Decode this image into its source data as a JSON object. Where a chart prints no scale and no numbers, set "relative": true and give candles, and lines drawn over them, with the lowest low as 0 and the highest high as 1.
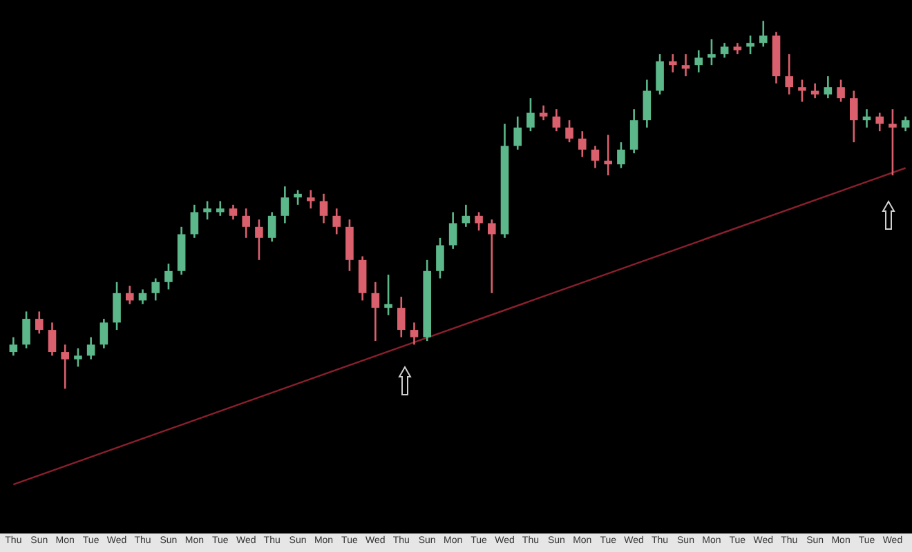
{
  "chart_data": {
    "type": "candlestick",
    "relative": true,
    "categories": [
      "Thu",
      null,
      "Sun",
      null,
      "Mon",
      null,
      "Tue",
      null,
      "Wed",
      null,
      "Thu",
      null,
      "Sun",
      null,
      "Mon",
      null,
      "Tue",
      null,
      "Wed",
      null,
      "Thu",
      null,
      "Sun",
      null,
      "Mon",
      null,
      "Tue",
      null,
      "Wed",
      null,
      "Thu",
      null,
      "Sun",
      null,
      "Mon",
      null,
      "Tue",
      null,
      "Wed",
      null,
      "Thu",
      null,
      "Sun",
      null,
      "Mon",
      null,
      "Tue",
      null,
      "Wed",
      null,
      "Thu",
      null,
      "Sun",
      null,
      "Mon",
      null,
      "Tue",
      null,
      "Wed",
      null,
      "Thu",
      null,
      "Sun",
      null,
      "Mon",
      null,
      "Tue",
      null,
      "Wed",
      null
    ],
    "ohlc": [
      [
        0.1,
        0.14,
        0.09,
        0.12
      ],
      [
        0.12,
        0.21,
        0.11,
        0.19
      ],
      [
        0.19,
        0.21,
        0.15,
        0.16
      ],
      [
        0.16,
        0.18,
        0.09,
        0.1
      ],
      [
        0.1,
        0.12,
        0,
        0.08
      ],
      [
        0.08,
        0.11,
        0.06,
        0.09
      ],
      [
        0.09,
        0.14,
        0.08,
        0.12
      ],
      [
        0.12,
        0.19,
        0.11,
        0.18
      ],
      [
        0.18,
        0.29,
        0.16,
        0.26
      ],
      [
        0.26,
        0.28,
        0.23,
        0.24
      ],
      [
        0.24,
        0.27,
        0.23,
        0.26
      ],
      [
        0.26,
        0.3,
        0.24,
        0.29
      ],
      [
        0.29,
        0.34,
        0.27,
        0.32
      ],
      [
        0.32,
        0.44,
        0.31,
        0.42
      ],
      [
        0.42,
        0.5,
        0.41,
        0.48
      ],
      [
        0.48,
        0.51,
        0.46,
        0.49
      ],
      [
        0.48,
        0.51,
        0.47,
        0.49
      ],
      [
        0.49,
        0.5,
        0.46,
        0.47
      ],
      [
        0.47,
        0.49,
        0.41,
        0.44
      ],
      [
        0.44,
        0.46,
        0.35,
        0.41
      ],
      [
        0.41,
        0.48,
        0.4,
        0.47
      ],
      [
        0.47,
        0.55,
        0.45,
        0.52
      ],
      [
        0.52,
        0.54,
        0.5,
        0.53
      ],
      [
        0.52,
        0.54,
        0.49,
        0.51
      ],
      [
        0.51,
        0.53,
        0.45,
        0.47
      ],
      [
        0.47,
        0.49,
        0.42,
        0.44
      ],
      [
        0.44,
        0.46,
        0.32,
        0.35
      ],
      [
        0.35,
        0.36,
        0.24,
        0.26
      ],
      [
        0.26,
        0.29,
        0.13,
        0.22
      ],
      [
        0.22,
        0.31,
        0.2,
        0.23
      ],
      [
        0.22,
        0.25,
        0.14,
        0.16
      ],
      [
        0.16,
        0.18,
        0.12,
        0.14
      ],
      [
        0.14,
        0.35,
        0.13,
        0.32
      ],
      [
        0.32,
        0.41,
        0.3,
        0.39
      ],
      [
        0.39,
        0.48,
        0.38,
        0.45
      ],
      [
        0.45,
        0.5,
        0.44,
        0.47
      ],
      [
        0.47,
        0.48,
        0.43,
        0.45
      ],
      [
        0.45,
        0.46,
        0.26,
        0.42
      ],
      [
        0.42,
        0.72,
        0.41,
        0.66
      ],
      [
        0.66,
        0.74,
        0.65,
        0.71
      ],
      [
        0.71,
        0.79,
        0.7,
        0.75
      ],
      [
        0.75,
        0.77,
        0.73,
        0.74
      ],
      [
        0.74,
        0.76,
        0.7,
        0.71
      ],
      [
        0.71,
        0.73,
        0.67,
        0.68
      ],
      [
        0.68,
        0.7,
        0.63,
        0.65
      ],
      [
        0.65,
        0.66,
        0.6,
        0.62
      ],
      [
        0.62,
        0.69,
        0.58,
        0.61
      ],
      [
        0.61,
        0.67,
        0.6,
        0.65
      ],
      [
        0.65,
        0.76,
        0.64,
        0.73
      ],
      [
        0.73,
        0.84,
        0.71,
        0.81
      ],
      [
        0.81,
        0.91,
        0.8,
        0.89
      ],
      [
        0.89,
        0.91,
        0.86,
        0.88
      ],
      [
        0.88,
        0.91,
        0.85,
        0.87
      ],
      [
        0.88,
        0.92,
        0.86,
        0.9
      ],
      [
        0.9,
        0.95,
        0.88,
        0.91
      ],
      [
        0.91,
        0.94,
        0.9,
        0.93
      ],
      [
        0.93,
        0.94,
        0.91,
        0.92
      ],
      [
        0.93,
        0.96,
        0.91,
        0.94
      ],
      [
        0.94,
        1,
        0.93,
        0.96
      ],
      [
        0.96,
        0.97,
        0.83,
        0.85
      ],
      [
        0.85,
        0.91,
        0.8,
        0.82
      ],
      [
        0.82,
        0.84,
        0.78,
        0.81
      ],
      [
        0.81,
        0.83,
        0.79,
        0.8
      ],
      [
        0.8,
        0.85,
        0.79,
        0.82
      ],
      [
        0.82,
        0.84,
        0.78,
        0.79
      ],
      [
        0.79,
        0.81,
        0.67,
        0.73
      ],
      [
        0.73,
        0.76,
        0.71,
        0.74
      ],
      [
        0.74,
        0.75,
        0.7,
        0.72
      ],
      [
        0.72,
        0.76,
        0.58,
        0.71
      ],
      [
        0.71,
        0.74,
        0.7,
        0.73
      ]
    ],
    "colors": [
      "#5cb88a",
      "#5cb88a",
      "#d9606c",
      "#d9606c",
      "#d9606c",
      "#5cb88a",
      "#5cb88a",
      "#5cb88a",
      "#5cb88a",
      "#d9606c",
      "#5cb88a",
      "#5cb88a",
      "#5cb88a",
      "#5cb88a",
      "#5cb88a",
      "#5cb88a",
      "#5cb88a",
      "#d9606c",
      "#d9606c",
      "#d9606c",
      "#5cb88a",
      "#5cb88a",
      "#5cb88a",
      "#d9606c",
      "#d9606c",
      "#d9606c",
      "#d9606c",
      "#d9606c",
      "#d9606c",
      "#5cb88a",
      "#d9606c",
      "#d9606c",
      "#5cb88a",
      "#5cb88a",
      "#5cb88a",
      "#5cb88a",
      "#d9606c",
      "#d9606c",
      "#5cb88a",
      "#5cb88a",
      "#5cb88a",
      "#d9606c",
      "#d9606c",
      "#d9606c",
      "#d9606c",
      "#d9606c",
      "#d9606c",
      "#5cb88a",
      "#5cb88a",
      "#5cb88a",
      "#5cb88a",
      "#d9606c",
      "#d9606c",
      "#5cb88a",
      "#5cb88a",
      "#5cb88a",
      "#d9606c",
      "#5cb88a",
      "#5cb88a",
      "#d9606c",
      "#d9606c",
      "#d9606c",
      "#d9606c",
      "#5cb88a",
      "#d9606c",
      "#d9606c",
      "#5cb88a",
      "#d9606c",
      "#d9606c",
      "#5cb88a"
    ],
    "series": [
      {
        "type": "line",
        "color": "#8b1f2e",
        "values": [
          -0.26,
          null,
          null,
          null,
          null,
          null,
          null,
          null,
          null,
          null,
          null,
          null,
          null,
          null,
          null,
          null,
          null,
          null,
          null,
          null,
          null,
          null,
          null,
          null,
          null,
          null,
          null,
          null,
          null,
          null,
          null,
          null,
          null,
          null,
          null,
          null,
          null,
          null,
          null,
          null,
          null,
          null,
          null,
          null,
          null,
          null,
          null,
          null,
          null,
          null,
          null,
          null,
          null,
          null,
          null,
          null,
          null,
          null,
          null,
          null,
          null,
          null,
          null,
          null,
          null,
          null,
          null,
          null,
          null,
          0.6
        ]
      }
    ]
  }
}
